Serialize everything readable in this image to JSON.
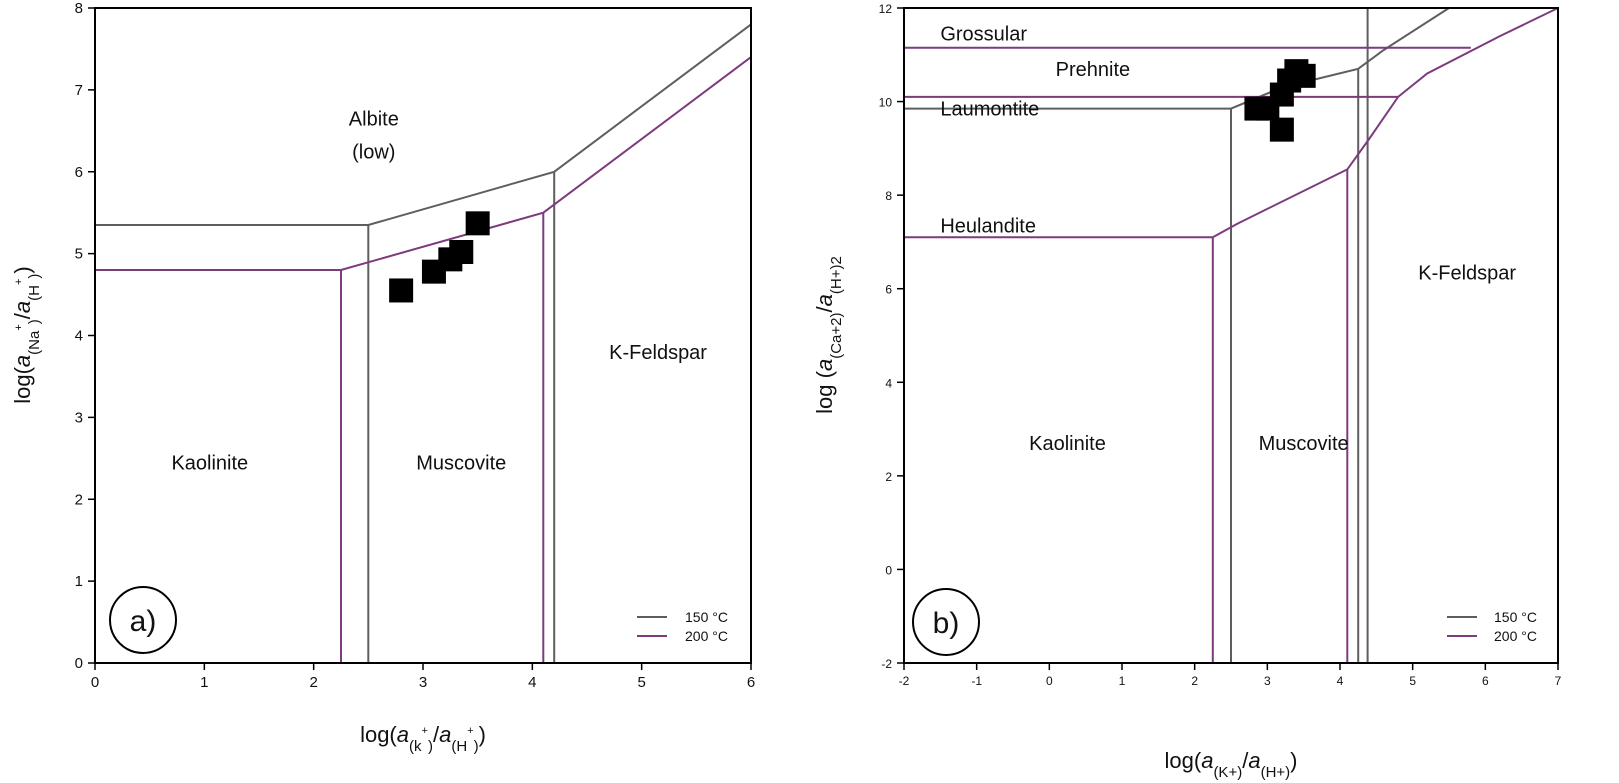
{
  "colors": {
    "t150": "#5e5e5e",
    "t200": "#7d3a7d",
    "points": "#000000"
  },
  "chart_data": [
    {
      "type": "phase-diagram",
      "panel_label": "a)",
      "xlabel": {
        "pre": "log(",
        "a1": "a",
        "sub1": "(k",
        "sup1": "+",
        "close1": ")",
        "slash": "/",
        "a2": "a",
        "sub2": "(H",
        "sup2": "+",
        "close2": ")",
        "post": ")"
      },
      "ylabel": {
        "pre": "log(",
        "a1": "a",
        "sub1": "(Na",
        "sup1": "+",
        "close1": ")",
        "slash": "/",
        "a2": "a",
        "sub2": "(H",
        "sup2": "+",
        "close2": ")",
        "post": ")"
      },
      "xlim": [
        0,
        6
      ],
      "ylim": [
        0,
        8
      ],
      "xticks": [
        "0",
        "1",
        "2",
        "3",
        "4",
        "5",
        "6"
      ],
      "yticks": [
        "0",
        "1",
        "2",
        "3",
        "4",
        "5",
        "6",
        "7",
        "8"
      ],
      "legend": {
        "placement": "bottom-right",
        "entries": [
          "150 °C",
          "200 °C"
        ]
      },
      "fields": [
        {
          "text": "Albite",
          "x": 2.55,
          "y": 6.65
        },
        {
          "text": "(low)",
          "x": 2.55,
          "y": 6.25
        },
        {
          "text": "Kaolinite",
          "x": 1.05,
          "y": 2.45
        },
        {
          "text": "Muscovite",
          "x": 3.35,
          "y": 2.45
        },
        {
          "text": "K-Feldspar",
          "x": 5.15,
          "y": 3.8
        }
      ],
      "boundaries": {
        "t150": [
          [
            [
              0,
              5.35
            ],
            [
              2.5,
              5.35
            ],
            [
              4.2,
              6.0
            ],
            [
              6,
              7.8
            ]
          ],
          [
            [
              2.5,
              0
            ],
            [
              2.5,
              5.35
            ]
          ],
          [
            [
              4.2,
              0
            ],
            [
              4.2,
              6.0
            ]
          ]
        ],
        "t200": [
          [
            [
              0,
              4.8
            ],
            [
              2.25,
              4.8
            ],
            [
              4.1,
              5.5
            ],
            [
              6,
              7.4
            ]
          ],
          [
            [
              2.25,
              0
            ],
            [
              2.25,
              4.8
            ]
          ],
          [
            [
              4.1,
              0
            ],
            [
              4.1,
              5.5
            ]
          ]
        ]
      },
      "points": [
        [
          2.8,
          4.55
        ],
        [
          3.1,
          4.78
        ],
        [
          3.25,
          4.93
        ],
        [
          3.35,
          5.02
        ],
        [
          3.5,
          5.37
        ]
      ]
    },
    {
      "type": "phase-diagram",
      "panel_label": "b)",
      "xlabel": {
        "pre": "log(",
        "a1": "a",
        "sub1": "(K+)",
        "slash": "/",
        "a2": "a",
        "sub2": "(H+)",
        "post": ")"
      },
      "ylabel": {
        "pre": "log (",
        "a1": "a",
        "sub1": "(Ca+2)",
        "slash": "/",
        "a2": "a",
        "sub2": "(H+)2"
      },
      "xlim": [
        -2,
        7
      ],
      "ylim": [
        -2,
        12
      ],
      "xticks": [
        "-2",
        "-1",
        "0",
        "1",
        "2",
        "3",
        "4",
        "5",
        "6",
        "7"
      ],
      "yticks": [
        "-2",
        "0",
        "2",
        "4",
        "6",
        "8",
        "10",
        "12"
      ],
      "legend": {
        "placement": "bottom-right",
        "entries": [
          "150 °C",
          "200 °C"
        ]
      },
      "fields": [
        {
          "text": "Grossular",
          "x": -1.5,
          "y": 11.45,
          "anchor": "start"
        },
        {
          "text": "Prehnite",
          "x": 0.6,
          "y": 10.7
        },
        {
          "text": "Laumontite",
          "x": -1.5,
          "y": 9.85,
          "anchor": "start"
        },
        {
          "text": "Heulandite",
          "x": -1.5,
          "y": 7.35,
          "anchor": "start"
        },
        {
          "text": "K-Feldspar",
          "x": 5.75,
          "y": 6.35
        },
        {
          "text": "Kaolinite",
          "x": 0.25,
          "y": 2.7
        },
        {
          "text": "Muscovite",
          "x": 3.5,
          "y": 2.7
        }
      ],
      "boundaries": {
        "t150": [
          [
            [
              -2,
              9.85
            ],
            [
              2.5,
              9.85
            ],
            [
              3.2,
              10.3
            ],
            [
              4.25,
              10.7
            ],
            [
              4.6,
              11.1
            ],
            [
              5.5,
              12
            ]
          ],
          [
            [
              2.5,
              -2
            ],
            [
              2.5,
              9.85
            ]
          ],
          [
            [
              4.25,
              -2
            ],
            [
              4.25,
              10.7
            ]
          ],
          [
            [
              4.38,
              -2
            ],
            [
              4.38,
              12
            ]
          ]
        ],
        "t200": [
          [
            [
              -2,
              7.1
            ],
            [
              2.25,
              7.1
            ],
            [
              2.6,
              7.4
            ],
            [
              4.1,
              8.55
            ],
            [
              4.4,
              9.2
            ],
            [
              4.8,
              10.1
            ],
            [
              5.2,
              10.6
            ],
            [
              6.2,
              11.4
            ],
            [
              7,
              12
            ]
          ],
          [
            [
              2.25,
              -2
            ],
            [
              2.25,
              7.1
            ]
          ],
          [
            [
              4.1,
              -2
            ],
            [
              4.1,
              8.55
            ]
          ],
          [
            [
              -2,
              10.1
            ],
            [
              4.8,
              10.1
            ]
          ],
          [
            [
              -2,
              11.15
            ],
            [
              5.8,
              11.15
            ]
          ]
        ]
      },
      "points": [
        [
          2.85,
          9.85
        ],
        [
          3.0,
          9.85
        ],
        [
          3.2,
          10.15
        ],
        [
          3.3,
          10.45
        ],
        [
          3.4,
          10.65
        ],
        [
          3.5,
          10.55
        ],
        [
          3.2,
          9.4
        ]
      ]
    }
  ]
}
